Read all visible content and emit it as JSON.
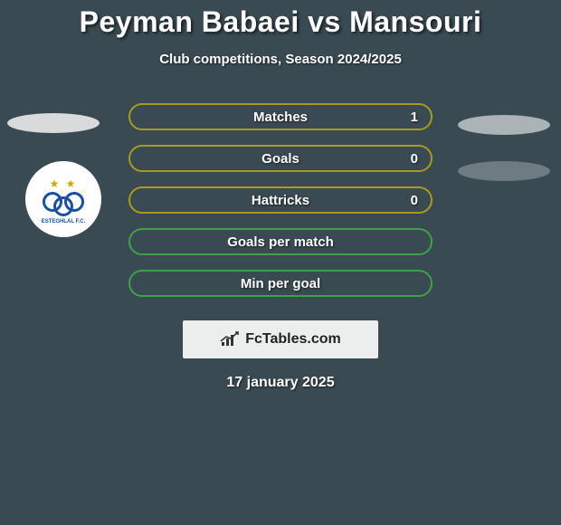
{
  "title": "Peyman Babaei vs Mansouri",
  "subtitle": "Club competitions, Season 2024/2025",
  "background_color": "#3a4a52",
  "text_color": "#ffffff",
  "stats": [
    {
      "label": "Matches",
      "value": "1",
      "color": "#a89a1f",
      "show_value": true
    },
    {
      "label": "Goals",
      "value": "0",
      "color": "#a89a1f",
      "show_value": true
    },
    {
      "label": "Hattricks",
      "value": "0",
      "color": "#a89a1f",
      "show_value": true
    },
    {
      "label": "Goals per match",
      "value": "",
      "color": "#3fa04a",
      "show_value": false
    },
    {
      "label": "Min per goal",
      "value": "",
      "color": "#3fa04a",
      "show_value": false
    }
  ],
  "ellipses": {
    "left": {
      "color": "#d9dadb"
    },
    "right1": {
      "color": "#acb3b7"
    },
    "right2": {
      "color": "#6f7b82"
    }
  },
  "club_badge": {
    "bg": "#ffffff",
    "ring_color": "#1b4fa0",
    "star_color": "#d9a400",
    "banner_text": "ESTEGHLAL F.C."
  },
  "watermark": {
    "bg": "#eceded",
    "text": "FcTables.com",
    "text_color": "#222222",
    "icon_color": "#333333"
  },
  "date": "17 january 2025"
}
